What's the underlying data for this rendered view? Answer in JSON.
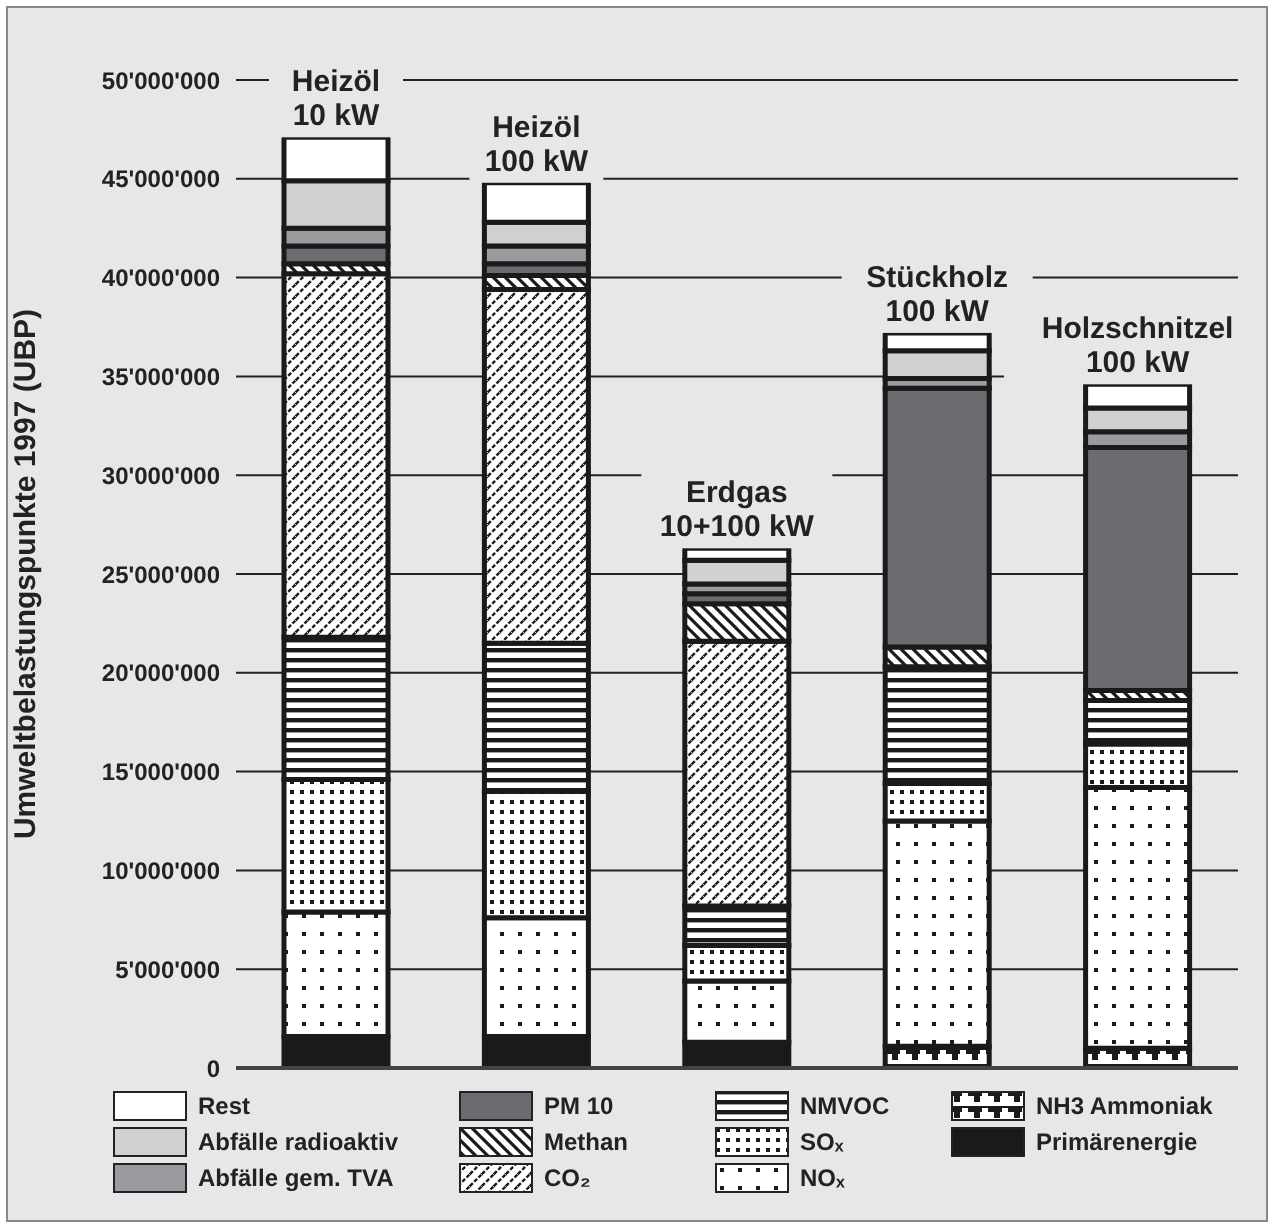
{
  "chart_data": {
    "type": "bar",
    "stacked": true,
    "ylabel": "Umweltbelastungspunkte 1997 (UBP)",
    "categories": [
      "Heizöl\n10 kW",
      "Heizöl\n100 kW",
      "Erdgas\n10+100 kW",
      "Stückholz\n100 kW",
      "Holzschnitzel\n100 kW"
    ],
    "series": [
      {
        "name": "Primärenergie",
        "color": "#1a1a1a",
        "values": [
          1600000,
          1600000,
          1300000,
          0,
          0
        ]
      },
      {
        "name": "NH3 Ammoniak",
        "color": "#1a1a1a",
        "values": [
          0,
          0,
          0,
          1100000,
          1000000
        ]
      },
      {
        "name": "NOₓ",
        "color": "#1a1a1a",
        "values": [
          6300000,
          6000000,
          3100000,
          11400000,
          13200000
        ]
      },
      {
        "name": "SOₓ",
        "color": "#1a1a1a",
        "values": [
          6700000,
          6400000,
          1800000,
          1900000,
          2200000
        ]
      },
      {
        "name": "NMVOC",
        "color": "#1a1a1a",
        "values": [
          7200000,
          7500000,
          2000000,
          5900000,
          2200000
        ]
      },
      {
        "name": "CO₂",
        "color": "#1a1a1a",
        "values": [
          18400000,
          17900000,
          13400000,
          0,
          0
        ]
      },
      {
        "name": "Methan",
        "color": "#1a1a1a",
        "values": [
          500000,
          700000,
          1900000,
          1000000,
          500000
        ]
      },
      {
        "name": "PM 10",
        "color": "#6b6c6f",
        "values": [
          900000,
          600000,
          500000,
          13100000,
          12300000
        ]
      },
      {
        "name": "Abfälle gem. TVA",
        "color": "#9a9b9e",
        "values": [
          900000,
          900000,
          500000,
          500000,
          800000
        ]
      },
      {
        "name": "Abfälle radioaktiv",
        "color": "#d0d1d3",
        "values": [
          2400000,
          1200000,
          1200000,
          1400000,
          1200000
        ]
      },
      {
        "name": "Rest",
        "color": "#ffffff",
        "values": [
          2200000,
          2000000,
          600000,
          900000,
          1200000
        ]
      }
    ],
    "ylim": [
      0,
      50000000
    ],
    "yticks": [
      0,
      {
        "value": 5000000,
        "label": "5'000'000"
      },
      {
        "value": 10000000,
        "label": "10'000'000"
      },
      {
        "value": 15000000,
        "label": "15'000'000"
      },
      {
        "value": 20000000,
        "label": "20'000'000"
      },
      {
        "value": 25000000,
        "label": "25'000'000"
      },
      {
        "value": 30000000,
        "label": "30'000'000"
      },
      {
        "value": 35000000,
        "label": "35'000'000"
      },
      {
        "value": 40000000,
        "label": "40'000'000"
      },
      {
        "value": 45000000,
        "label": "45'000'000"
      },
      {
        "value": 50000000,
        "label": "50'000'000"
      }
    ],
    "grid": "y",
    "legend": "bottom"
  }
}
